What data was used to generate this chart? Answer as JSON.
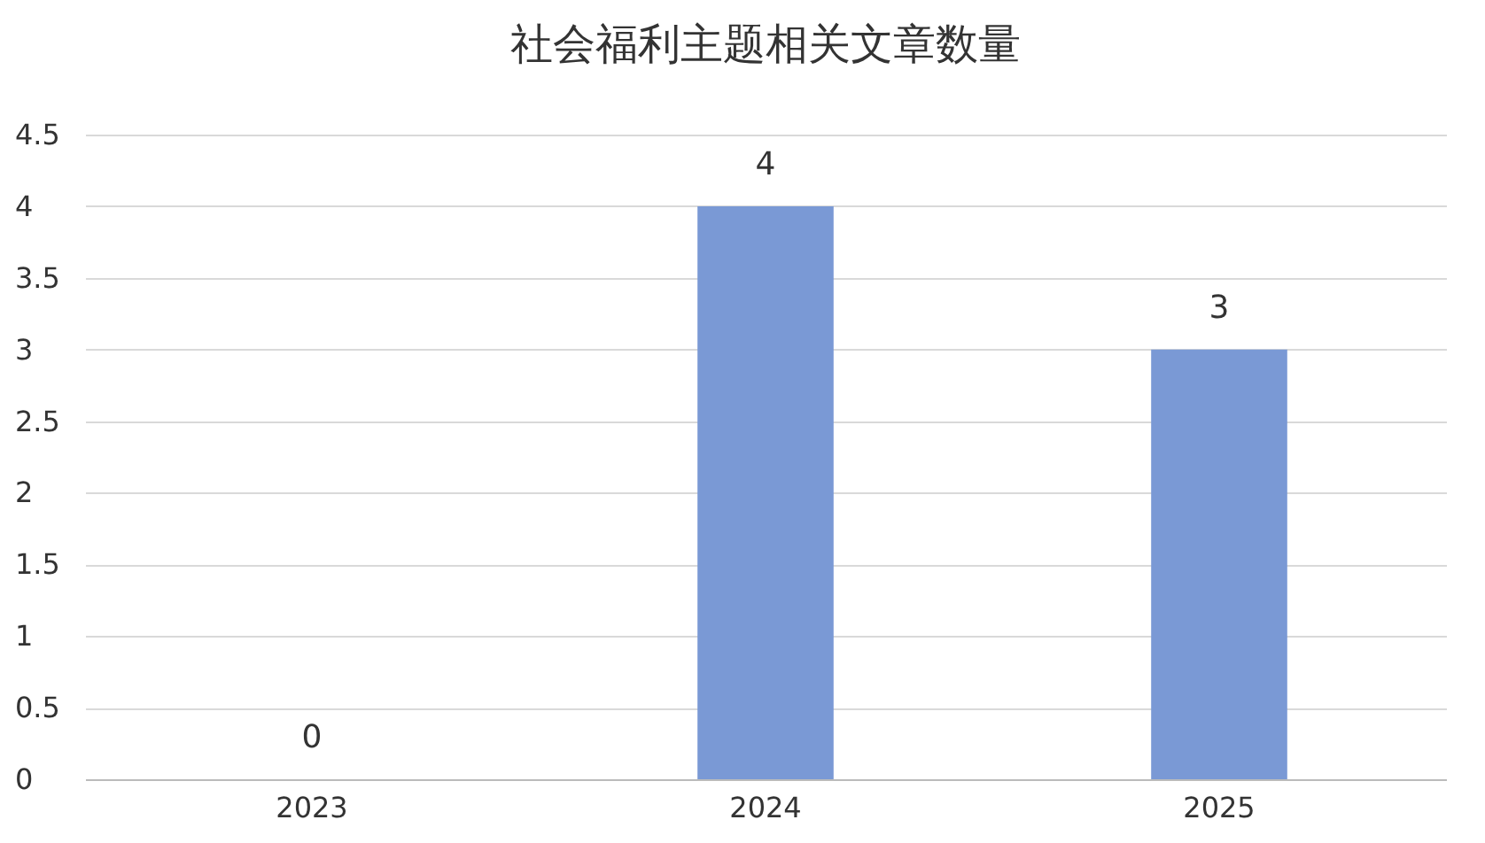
{
  "chart_data": {
    "type": "bar",
    "title": "社会福利主题相关文章数量",
    "categories": [
      "2023",
      "2024",
      "2025"
    ],
    "values": [
      0,
      4,
      3
    ],
    "color": "#7a99d5",
    "ylim": [
      0,
      4.5
    ],
    "yticks": [
      0,
      0.5,
      1,
      1.5,
      2,
      2.5,
      3,
      3.5,
      4,
      4.5
    ],
    "grid": "y",
    "data_labels": true
  }
}
